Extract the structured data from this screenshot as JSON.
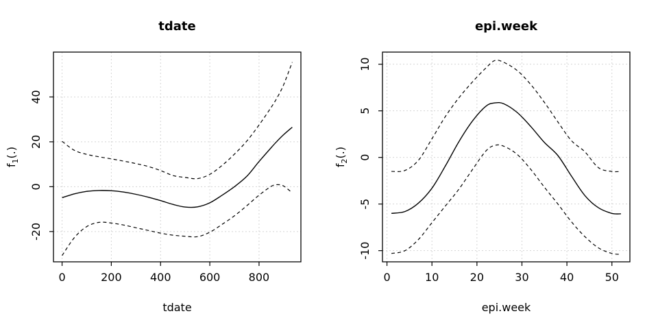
{
  "figure": {
    "background": "#ffffff",
    "line_color": "#000000",
    "grid_color": "#d4d4d4",
    "grid_style": "dotted"
  },
  "chart_data": [
    {
      "type": "line",
      "title": "tdate",
      "xlabel": "tdate",
      "ylabel": {
        "base": "f",
        "sub": "1",
        "args": "(.)"
      },
      "xlim": [
        -35,
        970
      ],
      "ylim": [
        -33.5,
        60
      ],
      "grid": true,
      "legend": "none",
      "xticks": [
        {
          "v": 0,
          "label": "0"
        },
        {
          "v": 200,
          "label": "200"
        },
        {
          "v": 400,
          "label": "400"
        },
        {
          "v": 600,
          "label": "600"
        },
        {
          "v": 800,
          "label": "800"
        }
      ],
      "yticks": [
        {
          "v": -20,
          "label": "-20"
        },
        {
          "v": 0,
          "label": "0"
        },
        {
          "v": 20,
          "label": "20"
        },
        {
          "v": 40,
          "label": "40"
        }
      ],
      "series": [
        {
          "name": "fit",
          "style": "solid",
          "x": [
            0,
            50,
            100,
            150,
            200,
            250,
            300,
            350,
            400,
            450,
            500,
            550,
            600,
            650,
            700,
            750,
            800,
            850,
            875,
            900,
            935
          ],
          "y": [
            -4.9,
            -3.2,
            -2.1,
            -1.7,
            -1.8,
            -2.4,
            -3.4,
            -4.7,
            -6.2,
            -7.9,
            -9.1,
            -9.0,
            -7.2,
            -3.8,
            0.0,
            4.6,
            11.2,
            17.5,
            20.5,
            23.2,
            26.5
          ]
        },
        {
          "name": "upper-ci",
          "style": "dashed",
          "x": [
            0,
            50,
            100,
            150,
            200,
            250,
            300,
            350,
            400,
            450,
            500,
            550,
            600,
            650,
            700,
            750,
            800,
            850,
            875,
            900,
            935
          ],
          "y": [
            20.2,
            16.2,
            14.4,
            13.3,
            12.4,
            11.4,
            10.3,
            9.0,
            7.2,
            5.0,
            4.1,
            3.6,
            5.5,
            9.5,
            14.5,
            20.3,
            27.5,
            35.5,
            40.0,
            45.5,
            55.5
          ]
        },
        {
          "name": "lower-ci",
          "style": "dashed",
          "x": [
            0,
            50,
            100,
            150,
            200,
            250,
            300,
            350,
            400,
            450,
            500,
            550,
            600,
            650,
            700,
            750,
            800,
            850,
            875,
            900,
            935
          ],
          "y": [
            -30.7,
            -22.7,
            -17.8,
            -15.9,
            -16.2,
            -17.1,
            -18.3,
            -19.5,
            -20.7,
            -21.6,
            -22.1,
            -22.3,
            -20.3,
            -16.8,
            -13.0,
            -8.5,
            -3.8,
            0.2,
            0.9,
            0.3,
            -2.8
          ]
        }
      ]
    },
    {
      "type": "line",
      "title": "epi.week",
      "xlabel": "epi.week",
      "ylabel": {
        "base": "f",
        "sub": "2",
        "args": "(.)"
      },
      "xlim": [
        -1,
        54
      ],
      "ylim": [
        -11.2,
        11.3
      ],
      "grid": true,
      "legend": "none",
      "xticks": [
        {
          "v": 0,
          "label": "0"
        },
        {
          "v": 10,
          "label": "10"
        },
        {
          "v": 20,
          "label": "20"
        },
        {
          "v": 30,
          "label": "30"
        },
        {
          "v": 40,
          "label": "40"
        },
        {
          "v": 50,
          "label": "50"
        }
      ],
      "yticks": [
        {
          "v": -10,
          "label": "-10"
        },
        {
          "v": -5,
          "label": "-5"
        },
        {
          "v": 0,
          "label": "0"
        },
        {
          "v": 5,
          "label": "5"
        },
        {
          "v": 10,
          "label": "10"
        }
      ],
      "series": [
        {
          "name": "fit",
          "style": "solid",
          "x": [
            1,
            4,
            7,
            10,
            13,
            16,
            19,
            22,
            24,
            26,
            29,
            32,
            35,
            38,
            41,
            44,
            47,
            50,
            52
          ],
          "y": [
            -6.0,
            -5.8,
            -4.9,
            -3.3,
            -0.9,
            1.7,
            3.9,
            5.5,
            5.85,
            5.75,
            4.8,
            3.3,
            1.6,
            0.2,
            -2.0,
            -4.1,
            -5.4,
            -6.0,
            -6.05
          ]
        },
        {
          "name": "upper-ci",
          "style": "dashed",
          "x": [
            1,
            4,
            7,
            10,
            13,
            16,
            19,
            22,
            24,
            26,
            29,
            32,
            35,
            38,
            41,
            44,
            47,
            50,
            52
          ],
          "y": [
            -1.5,
            -1.4,
            -0.3,
            2.0,
            4.4,
            6.4,
            8.1,
            9.6,
            10.4,
            10.2,
            9.3,
            7.8,
            5.9,
            3.8,
            1.8,
            0.6,
            -1.1,
            -1.5,
            -1.5
          ]
        },
        {
          "name": "lower-ci",
          "style": "dashed",
          "x": [
            1,
            4,
            7,
            10,
            13,
            16,
            19,
            22,
            24,
            26,
            29,
            32,
            35,
            38,
            41,
            44,
            47,
            50,
            52
          ],
          "y": [
            -10.3,
            -10.0,
            -8.8,
            -7.0,
            -5.2,
            -3.4,
            -1.3,
            0.7,
            1.3,
            1.2,
            0.3,
            -1.3,
            -3.2,
            -5.0,
            -6.9,
            -8.5,
            -9.7,
            -10.3,
            -10.4
          ]
        }
      ]
    }
  ]
}
